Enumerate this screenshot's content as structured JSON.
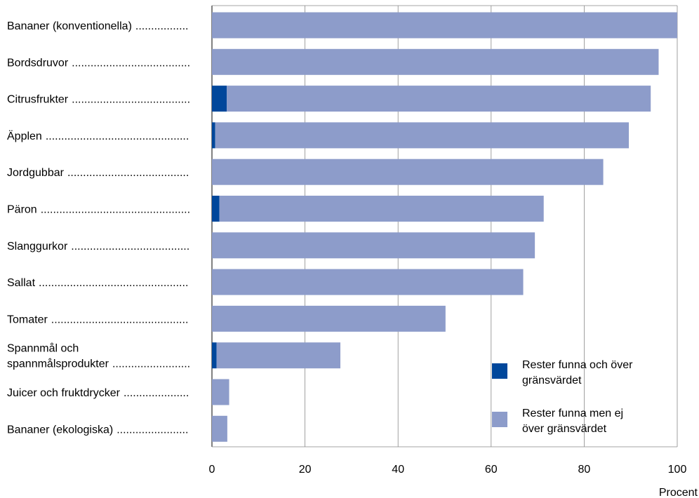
{
  "chart_data": {
    "type": "bar",
    "orientation": "horizontal",
    "stacked": true,
    "categories": [
      [
        "Bananer (konventionella)"
      ],
      [
        "Bordsdruvor"
      ],
      [
        "Citrusfrukter"
      ],
      [
        "Äpplen"
      ],
      [
        "Jordgubbar"
      ],
      [
        "Päron"
      ],
      [
        "Slanggurkor"
      ],
      [
        "Sallat"
      ],
      [
        "Tomater"
      ],
      [
        "Spannmål och",
        "spannmålsprodukter"
      ],
      [
        "Juicer och fruktdrycker"
      ],
      [
        "Bananer (ekologiska)"
      ]
    ],
    "series": [
      {
        "name": "Rester funna och över gränsvärdet",
        "legend_lines": [
          "Rester funna och över",
          "gränsvärdet"
        ],
        "color": "#00479b",
        "values": [
          0,
          0,
          3.2,
          0.7,
          0,
          1.6,
          0,
          0,
          0,
          1.0,
          0,
          0
        ]
      },
      {
        "name": "Rester funna men ej över gränsvärdet",
        "legend_lines": [
          "Rester funna men ej",
          "över gränsvärdet"
        ],
        "color": "#8d9cca",
        "values": [
          100,
          96,
          91.1,
          88.9,
          84.1,
          69.7,
          69.4,
          66.9,
          50.2,
          26.6,
          3.7,
          3.3
        ]
      }
    ],
    "xticks": [
      "0",
      "20",
      "40",
      "60",
      "80",
      "100"
    ],
    "xlim": [
      0,
      100
    ],
    "xlabel": "Procent",
    "grid": "vertical",
    "legend_position": "bottom-right"
  }
}
